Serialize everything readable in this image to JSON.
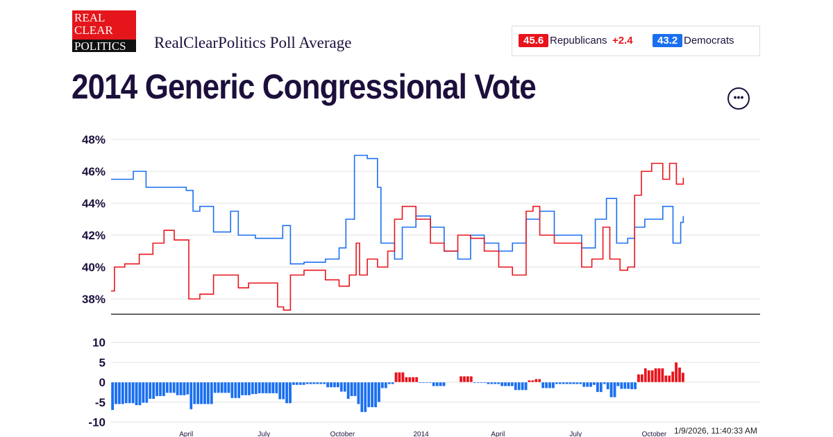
{
  "header": {
    "logo_text": [
      "REAL",
      "CLEAR",
      "POLITICS"
    ],
    "subtitle": "RealClearPolitics Poll Average",
    "title": "2014 Generic Congressional Vote",
    "more_icon": "ellipsis-icon"
  },
  "legend": {
    "rep": {
      "value": "45.6",
      "label": "Republicans",
      "lead": "+2.4",
      "color": "#e8141c"
    },
    "dem": {
      "value": "43.2",
      "label": "Democrats",
      "color": "#1a6ff0"
    }
  },
  "timestamp": "1/9/2026, 11:40:33 AM",
  "chart_data": [
    {
      "type": "line",
      "ylim": [
        37,
        48
      ],
      "yticks": [
        "48%",
        "46%",
        "44%",
        "42%",
        "40%",
        "38%"
      ],
      "ytick_values": [
        48,
        46,
        44,
        42,
        40,
        38
      ],
      "xlim": [
        "2013-01-03",
        "2015-02-02"
      ],
      "xticks": [
        {
          "label": "April",
          "date": "2013-04-01"
        },
        {
          "label": "July",
          "date": "2013-07-01"
        },
        {
          "label": "October",
          "date": "2013-10-01"
        },
        {
          "label": "2014",
          "date": "2014-01-01"
        },
        {
          "label": "April",
          "date": "2014-04-01"
        },
        {
          "label": "July",
          "date": "2014-07-01"
        },
        {
          "label": "October",
          "date": "2014-10-01"
        }
      ],
      "grid": true,
      "series": [
        {
          "name": "Democrats",
          "color": "#1a6ff0",
          "points": [
            [
              "2013-01-03",
              45.5
            ],
            [
              "2013-01-29",
              46.0
            ],
            [
              "2013-02-13",
              45.0
            ],
            [
              "2013-04-01",
              44.8
            ],
            [
              "2013-04-09",
              43.5
            ],
            [
              "2013-04-17",
              43.8
            ],
            [
              "2013-05-03",
              42.2
            ],
            [
              "2013-05-23",
              43.5
            ],
            [
              "2013-06-01",
              42.0
            ],
            [
              "2013-06-21",
              41.8
            ],
            [
              "2013-07-23",
              42.6
            ],
            [
              "2013-08-01",
              40.2
            ],
            [
              "2013-08-17",
              40.3
            ],
            [
              "2013-09-11",
              40.5
            ],
            [
              "2013-09-27",
              41.2
            ],
            [
              "2013-10-05",
              43.0
            ],
            [
              "2013-10-15",
              47.0
            ],
            [
              "2013-10-30",
              46.8
            ],
            [
              "2013-11-11",
              45.0
            ],
            [
              "2013-11-15",
              41.5
            ],
            [
              "2013-12-01",
              40.5
            ],
            [
              "2013-12-10",
              42.5
            ],
            [
              "2013-12-26",
              43.2
            ],
            [
              "2014-01-12",
              42.5
            ],
            [
              "2014-01-28",
              41.0
            ],
            [
              "2014-02-13",
              40.5
            ],
            [
              "2014-02-28",
              42.0
            ],
            [
              "2014-03-16",
              41.5
            ],
            [
              "2014-04-02",
              41.0
            ],
            [
              "2014-04-18",
              41.5
            ],
            [
              "2014-05-04",
              43.0
            ],
            [
              "2014-05-20",
              43.5
            ],
            [
              "2014-06-06",
              42.0
            ],
            [
              "2014-06-22",
              42.0
            ],
            [
              "2014-07-08",
              41.2
            ],
            [
              "2014-07-24",
              43.0
            ],
            [
              "2014-08-06",
              44.3
            ],
            [
              "2014-08-18",
              41.5
            ],
            [
              "2014-08-31",
              41.8
            ],
            [
              "2014-09-08",
              42.5
            ],
            [
              "2014-09-20",
              43.0
            ],
            [
              "2014-10-11",
              43.8
            ],
            [
              "2014-10-23",
              41.5
            ],
            [
              "2014-11-01",
              42.8
            ],
            [
              "2014-11-04",
              43.2
            ]
          ]
        },
        {
          "name": "Republicans",
          "color": "#e8141c",
          "points": [
            [
              "2013-01-03",
              38.5
            ],
            [
              "2013-01-07",
              40.0
            ],
            [
              "2013-01-19",
              40.2
            ],
            [
              "2013-02-05",
              40.8
            ],
            [
              "2013-02-21",
              41.5
            ],
            [
              "2013-03-06",
              42.3
            ],
            [
              "2013-03-18",
              41.7
            ],
            [
              "2013-03-30",
              41.7
            ],
            [
              "2013-04-04",
              38.0
            ],
            [
              "2013-04-17",
              38.3
            ],
            [
              "2013-05-03",
              39.5
            ],
            [
              "2013-05-19",
              39.5
            ],
            [
              "2013-06-01",
              38.7
            ],
            [
              "2013-06-13",
              39.0
            ],
            [
              "2013-07-13",
              39.0
            ],
            [
              "2013-07-17",
              37.5
            ],
            [
              "2013-07-24",
              37.3
            ],
            [
              "2013-08-01",
              39.5
            ],
            [
              "2013-08-17",
              39.8
            ],
            [
              "2013-09-11",
              39.2
            ],
            [
              "2013-09-27",
              38.8
            ],
            [
              "2013-10-09",
              39.5
            ],
            [
              "2013-10-17",
              41.5
            ],
            [
              "2013-10-21",
              39.5
            ],
            [
              "2013-10-30",
              40.5
            ],
            [
              "2013-11-11",
              40.0
            ],
            [
              "2013-11-23",
              41.0
            ],
            [
              "2013-12-01",
              43.0
            ],
            [
              "2013-12-10",
              43.8
            ],
            [
              "2013-12-26",
              43.0
            ],
            [
              "2014-01-12",
              41.5
            ],
            [
              "2014-01-28",
              41.0
            ],
            [
              "2014-02-13",
              42.0
            ],
            [
              "2014-02-28",
              41.8
            ],
            [
              "2014-03-16",
              41.0
            ],
            [
              "2014-04-02",
              40.0
            ],
            [
              "2014-04-18",
              39.5
            ],
            [
              "2014-05-04",
              43.5
            ],
            [
              "2014-05-12",
              43.8
            ],
            [
              "2014-05-20",
              42.0
            ],
            [
              "2014-06-06",
              41.5
            ],
            [
              "2014-06-22",
              41.5
            ],
            [
              "2014-07-08",
              40.0
            ],
            [
              "2014-07-20",
              40.5
            ],
            [
              "2014-08-02",
              42.5
            ],
            [
              "2014-08-10",
              40.5
            ],
            [
              "2014-08-22",
              39.8
            ],
            [
              "2014-08-31",
              40.0
            ],
            [
              "2014-09-08",
              44.5
            ],
            [
              "2014-09-16",
              46.0
            ],
            [
              "2014-09-28",
              46.5
            ],
            [
              "2014-10-11",
              45.5
            ],
            [
              "2014-10-19",
              46.5
            ],
            [
              "2014-10-27",
              45.2
            ],
            [
              "2014-11-04",
              45.6
            ]
          ]
        }
      ]
    },
    {
      "type": "bar",
      "ylim": [
        -10,
        10
      ],
      "yticks": [
        "10",
        "5",
        "0",
        "-5",
        "-10"
      ],
      "ytick_values": [
        10,
        5,
        0,
        -5,
        -10
      ],
      "grid": true,
      "colors": {
        "positive": "#e8141c",
        "negative": "#1a6ff0"
      }
    }
  ]
}
